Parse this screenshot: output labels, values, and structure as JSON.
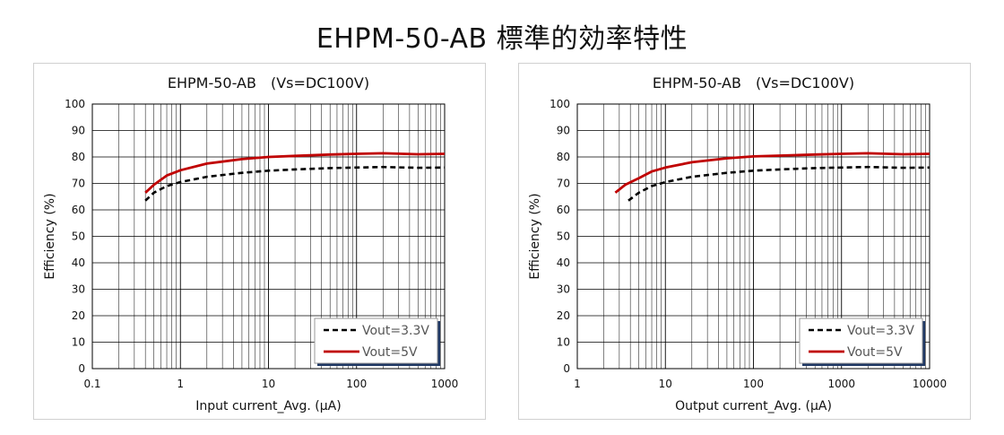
{
  "page": {
    "title": "EHPM-50-AB 標準的効率特性"
  },
  "chart_data": [
    {
      "type": "line",
      "title": "EHPM-50-AB　(Vs=DC100V)",
      "xlabel": "Input current_Avg. (μA)",
      "ylabel": "Efficiency (%)",
      "x_scale": "log",
      "xlim": [
        0.1,
        1000
      ],
      "ylim": [
        0,
        100
      ],
      "x_ticks": [
        "0.1",
        "1",
        "10",
        "100",
        "1000"
      ],
      "y_ticks": [
        "0",
        "10",
        "20",
        "30",
        "40",
        "50",
        "60",
        "70",
        "80",
        "90",
        "100"
      ],
      "grid": true,
      "legend_position": "bottom-right",
      "series": [
        {
          "name": "Vout=3.3V",
          "color": "#000000",
          "style": "dashed",
          "x": [
            0.4,
            0.5,
            0.7,
            1,
            2,
            5,
            10,
            20,
            50,
            100,
            200,
            500,
            1000
          ],
          "y": [
            63.5,
            66.5,
            69,
            70.5,
            72.5,
            74,
            74.8,
            75.3,
            75.8,
            76,
            76.2,
            75.9,
            76
          ]
        },
        {
          "name": "Vout=5V",
          "color": "#c00000",
          "style": "solid",
          "x": [
            0.4,
            0.5,
            0.7,
            1,
            2,
            5,
            10,
            20,
            50,
            100,
            200,
            500,
            1000
          ],
          "y": [
            66.5,
            69.5,
            73,
            75,
            77.5,
            79.2,
            80,
            80.4,
            80.9,
            81.2,
            81.4,
            81,
            81.2
          ]
        }
      ]
    },
    {
      "type": "line",
      "title": "EHPM-50-AB　(Vs=DC100V)",
      "xlabel": "Output current_Avg. (μA)",
      "ylabel": "Efficiency (%)",
      "x_scale": "log",
      "xlim": [
        1,
        10000
      ],
      "ylim": [
        0,
        100
      ],
      "x_ticks": [
        "1",
        "10",
        "100",
        "1000",
        "10000"
      ],
      "y_ticks": [
        "0",
        "10",
        "20",
        "30",
        "40",
        "50",
        "60",
        "70",
        "80",
        "90",
        "100"
      ],
      "grid": true,
      "legend_position": "bottom-right",
      "series": [
        {
          "name": "Vout=3.3V",
          "color": "#000000",
          "style": "dashed",
          "x": [
            3.8,
            5,
            7,
            10,
            20,
            50,
            100,
            200,
            500,
            1000,
            2000,
            5000,
            10000
          ],
          "y": [
            63.5,
            66.5,
            69,
            70.5,
            72.5,
            74,
            74.8,
            75.3,
            75.8,
            76,
            76.2,
            75.9,
            76
          ]
        },
        {
          "name": "Vout=5V",
          "color": "#c00000",
          "style": "solid",
          "x": [
            2.7,
            3.5,
            5,
            7,
            10,
            20,
            50,
            100,
            200,
            500,
            1000,
            2000,
            5000,
            10000
          ],
          "y": [
            66.5,
            69.5,
            72,
            74.5,
            76,
            78,
            79.5,
            80.2,
            80.5,
            80.9,
            81.2,
            81.4,
            81,
            81.2
          ]
        }
      ]
    }
  ]
}
